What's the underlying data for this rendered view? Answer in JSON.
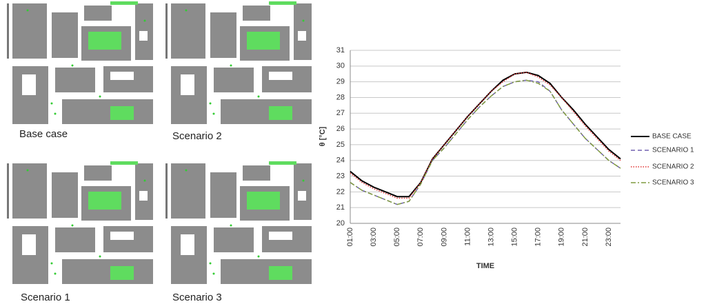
{
  "map_captions": [
    "Base case",
    "Scenario 2",
    "Scenario 1",
    "Scenario 3"
  ],
  "chart_data": {
    "type": "line",
    "y_label": "θ [°C]",
    "x_label": "TIME",
    "categories": [
      "01:00",
      null,
      "03:00",
      null,
      "05:00",
      null,
      "07:00",
      null,
      "09:00",
      null,
      "11:00",
      null,
      "13:00",
      null,
      "15:00",
      null,
      "17:00",
      null,
      "19:00",
      null,
      "21:00",
      null,
      "23:00",
      null
    ],
    "ylim": [
      20,
      31
    ],
    "yticks": [
      20,
      21,
      22,
      23,
      24,
      25,
      26,
      27,
      28,
      29,
      30,
      31
    ],
    "grid": true,
    "legend": "right",
    "series": [
      {
        "name": "BASE CASE",
        "color": "#000000",
        "dash": "solid",
        "values": [
          23.3,
          22.7,
          22.3,
          22.0,
          21.7,
          21.7,
          22.6,
          24.1,
          25.0,
          25.9,
          26.8,
          27.6,
          28.4,
          29.1,
          29.5,
          29.6,
          29.4,
          28.9,
          28.0,
          27.2,
          26.3,
          25.5,
          24.7,
          24.1
        ]
      },
      {
        "name": "SCENARIO 1",
        "color": "#7060b0",
        "dash": "dashed",
        "values": [
          22.6,
          22.1,
          21.8,
          21.5,
          21.2,
          21.4,
          22.5,
          24.0,
          24.8,
          25.7,
          26.6,
          27.4,
          28.1,
          28.7,
          29.0,
          29.1,
          29.0,
          28.4,
          27.2,
          26.3,
          25.4,
          24.7,
          24.0,
          23.5
        ]
      },
      {
        "name": "SCENARIO 2",
        "color": "#e03030",
        "dash": "dotted",
        "values": [
          23.2,
          22.6,
          22.2,
          21.9,
          21.6,
          21.6,
          22.6,
          24.1,
          25.0,
          25.9,
          26.8,
          27.6,
          28.4,
          29.0,
          29.5,
          29.6,
          29.3,
          28.8,
          28.0,
          27.1,
          26.2,
          25.4,
          24.6,
          24.0
        ]
      },
      {
        "name": "SCENARIO 3",
        "color": "#7f9a3e",
        "dash": "dashdot",
        "values": [
          22.6,
          22.1,
          21.8,
          21.5,
          21.2,
          21.4,
          22.5,
          24.0,
          24.8,
          25.7,
          26.6,
          27.4,
          28.1,
          28.7,
          29.0,
          29.1,
          28.9,
          28.4,
          27.2,
          26.3,
          25.4,
          24.7,
          24.0,
          23.5
        ]
      }
    ]
  }
}
